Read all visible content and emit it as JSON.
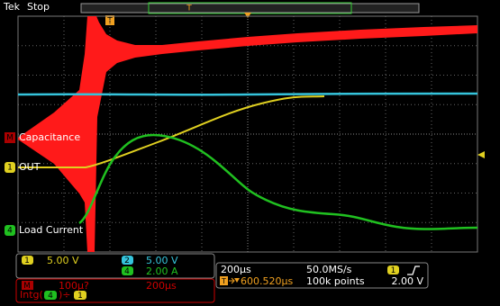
{
  "header": {
    "brand": "Tek",
    "status": "Stop",
    "trigger_marker": "T"
  },
  "channels": [
    {
      "badge": "M",
      "label": "Capacitance"
    },
    {
      "badge": "1",
      "label": "OUT"
    },
    {
      "badge": "4",
      "label": "Load Current"
    }
  ],
  "readouts": {
    "ch1": {
      "badge": "1",
      "scale": "5.00 V"
    },
    "ch2": {
      "badge": "2",
      "scale": "5.00 V"
    },
    "ch4": {
      "badge": "4",
      "scale": "2.00 A"
    },
    "math": {
      "badge": "M",
      "scale": "100µ?",
      "time": "200µs",
      "expr_prefix": "Intg(",
      "expr_source": "4",
      "expr_suffix": ")÷",
      "expr_divisor": "1"
    }
  },
  "acquisition": {
    "timebase": "200µs",
    "sample_rate": "50.0MS/s",
    "trigger_source": "1",
    "trigger_icon": "T",
    "trigger_position": "600.520µs",
    "record_length": "100k points",
    "trigger_level": "2.00 V"
  }
}
